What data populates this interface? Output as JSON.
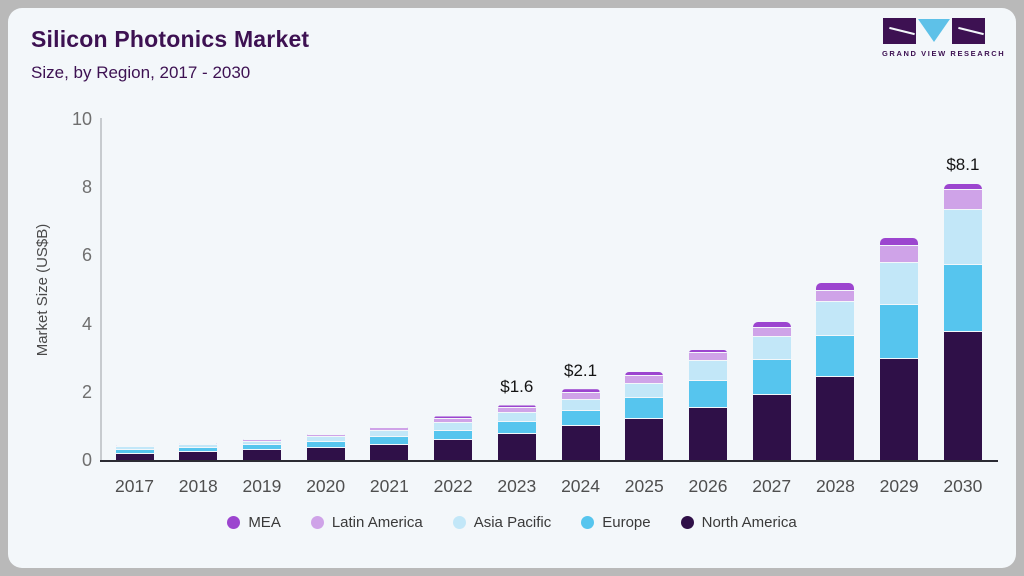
{
  "header": {
    "title": "Silicon Photonics Market",
    "subtitle": "Size, by Region, 2017 - 2030",
    "logo_text": "GRAND VIEW RESEARCH"
  },
  "chart_data": {
    "type": "bar",
    "stacked": true,
    "title": "Silicon Photonics Market",
    "subtitle": "Size, by Region, 2017 - 2030",
    "xlabel": "",
    "ylabel": "Market Size (US$B)",
    "ylim": [
      0,
      10
    ],
    "yticks": [
      0,
      2,
      4,
      6,
      8,
      10
    ],
    "grid": false,
    "legend_position": "bottom",
    "categories": [
      "2017",
      "2018",
      "2019",
      "2020",
      "2021",
      "2022",
      "2023",
      "2024",
      "2025",
      "2026",
      "2027",
      "2028",
      "2029",
      "2030"
    ],
    "series": [
      {
        "name": "North America",
        "color": "#2f1048",
        "values": [
          0.19,
          0.23,
          0.29,
          0.36,
          0.45,
          0.6,
          0.77,
          1.0,
          1.21,
          1.52,
          1.92,
          2.43,
          2.97,
          3.76
        ]
      },
      {
        "name": "Europe",
        "color": "#56c5ee",
        "values": [
          0.1,
          0.12,
          0.14,
          0.18,
          0.22,
          0.26,
          0.34,
          0.44,
          0.6,
          0.8,
          1.02,
          1.2,
          1.58,
          1.95
        ]
      },
      {
        "name": "Asia Pacific",
        "color": "#c2e7f8",
        "values": [
          0.08,
          0.09,
          0.11,
          0.14,
          0.18,
          0.21,
          0.28,
          0.32,
          0.42,
          0.58,
          0.68,
          1.0,
          1.22,
          1.62
        ]
      },
      {
        "name": "Latin America",
        "color": "#cfa3e8",
        "values": [
          0.04,
          0.04,
          0.05,
          0.06,
          0.08,
          0.13,
          0.14,
          0.22,
          0.22,
          0.23,
          0.26,
          0.34,
          0.52,
          0.6
        ]
      },
      {
        "name": "MEA",
        "color": "#9c45cf",
        "values": [
          0.01,
          0.02,
          0.03,
          0.03,
          0.04,
          0.08,
          0.07,
          0.1,
          0.13,
          0.11,
          0.18,
          0.21,
          0.21,
          0.18
        ]
      }
    ],
    "totals": [
      0.42,
      0.5,
      0.62,
      0.77,
      0.97,
      1.28,
      1.6,
      2.1,
      2.58,
      3.24,
      4.06,
      5.18,
      6.5,
      8.11
    ],
    "bar_labels": {
      "2023": "$1.6",
      "2024": "$2.1",
      "2030": "$8.1"
    },
    "legend_order": [
      "MEA",
      "Latin America",
      "Asia Pacific",
      "Europe",
      "North America"
    ]
  },
  "colors": {
    "card_bg": "#f3f7fa",
    "frame": "#b9b9b9",
    "title_text": "#3d1152",
    "axis_line": "#c7cbcf",
    "baseline": "#2b2b33",
    "tick_text": "#6f6f6f",
    "xlabel_text": "#4f4f4f",
    "legend_text": "#3a3a3a",
    "bar_label_text": "#141414"
  }
}
